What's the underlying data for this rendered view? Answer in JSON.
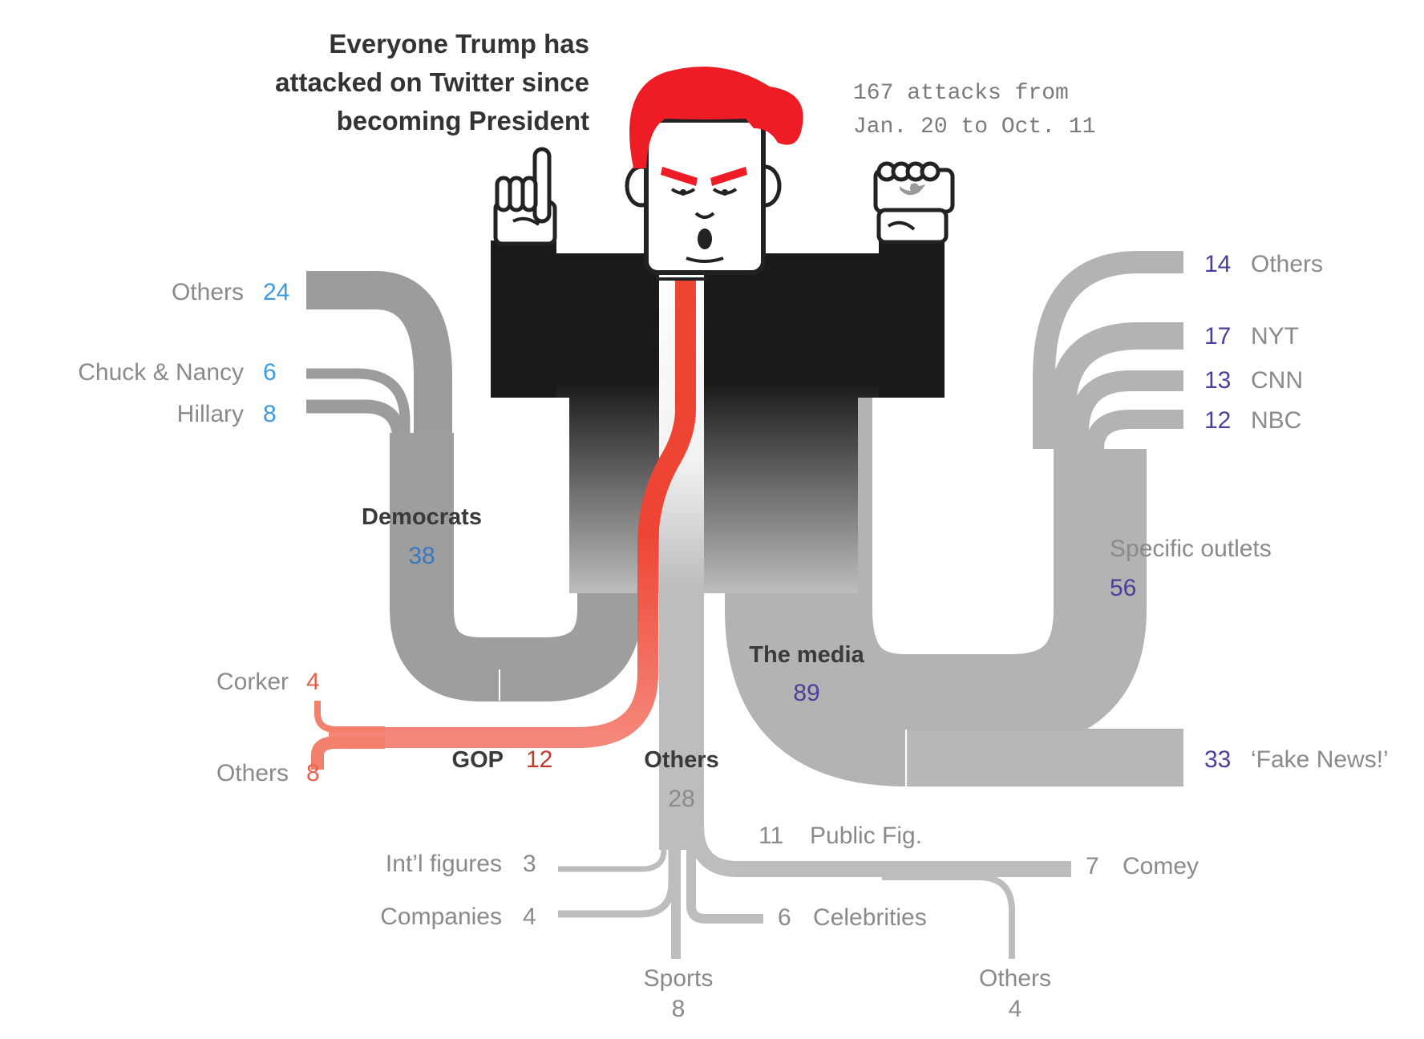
{
  "title": [
    "Everyone Trump has",
    "attacked on Twitter since",
    "becoming President"
  ],
  "subtitle": [
    "167 attacks from",
    "Jan. 20 to Oct. 11"
  ],
  "colors": {
    "democrats_num": "#3d9ae0",
    "democrats_total": "#3a79c0",
    "gop": "#f2806d",
    "gop_num": "#e8604c",
    "gop_total": "#c0392b",
    "media_num": "#4b3f9c",
    "gray_num": "#8a8a8a",
    "hair": "#ee1c25"
  },
  "groups": {
    "democrats": {
      "label": "Democrats",
      "value": "38",
      "items": [
        {
          "name": "Others",
          "value": "24"
        },
        {
          "name": "Chuck & Nancy",
          "value": "6"
        },
        {
          "name": "Hillary",
          "value": "8"
        }
      ]
    },
    "gop": {
      "label": "GOP",
      "value": "12",
      "items": [
        {
          "name": "Corker",
          "value": "4"
        },
        {
          "name": "Others",
          "value": "8"
        }
      ]
    },
    "media": {
      "label": "The media",
      "value": "89",
      "specific": {
        "label": "Specific outlets",
        "value": "56",
        "items": [
          {
            "name": "Others",
            "value": "14"
          },
          {
            "name": "NYT",
            "value": "17"
          },
          {
            "name": "CNN",
            "value": "13"
          },
          {
            "name": "NBC",
            "value": "12"
          }
        ]
      },
      "fake_news": {
        "name": "‘Fake News!’",
        "value": "33"
      }
    },
    "others": {
      "label": "Others",
      "value": "28",
      "public_fig": {
        "name": "Public Fig.",
        "value": "11"
      },
      "items": [
        {
          "name": "Int’l figures",
          "value": "3"
        },
        {
          "name": "Companies",
          "value": "4"
        },
        {
          "name": "Comey",
          "value": "7"
        },
        {
          "name": "Celebrities",
          "value": "6"
        }
      ],
      "bottom": [
        {
          "name": "Sports",
          "value": "8"
        },
        {
          "name": "Others",
          "value": "4"
        }
      ]
    }
  }
}
